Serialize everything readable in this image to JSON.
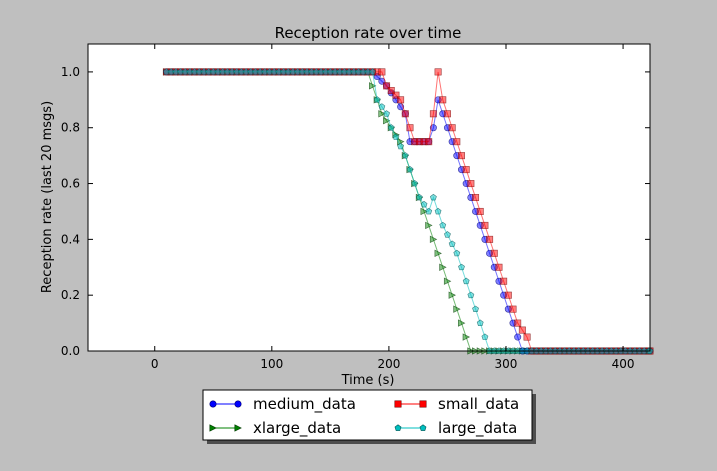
{
  "chart_data": {
    "type": "line",
    "title": "Reception rate over time",
    "xlabel": "Time (s)",
    "ylabel": "Reception rate (last 20 msgs)",
    "xlim": [
      -57,
      423
    ],
    "ylim": [
      0,
      1.1
    ],
    "xticks": [
      0,
      100,
      200,
      300,
      400
    ],
    "yticks": [
      0.0,
      0.2,
      0.4,
      0.6,
      0.8,
      1.0
    ],
    "xtick_labels": [
      "0",
      "100",
      "200",
      "300",
      "400"
    ],
    "ytick_labels": [
      "0.0",
      "0.2",
      "0.4",
      "0.6",
      "0.8",
      "1.0"
    ],
    "legend_position": "below plot, center",
    "x_step": 4,
    "series": [
      {
        "name": "medium_data",
        "color": "#0000ff",
        "marker": "circle",
        "points": [
          [
            10,
            1.0
          ],
          [
            186,
            1.0
          ],
          [
            198,
            0.95
          ],
          [
            206,
            0.9
          ],
          [
            214,
            0.85
          ],
          [
            218,
            0.75
          ],
          [
            234,
            0.75
          ],
          [
            238,
            0.8
          ],
          [
            242,
            0.9
          ],
          [
            246,
            0.85
          ],
          [
            254,
            0.75
          ],
          [
            258,
            0.7
          ],
          [
            270,
            0.55
          ],
          [
            282,
            0.4
          ],
          [
            306,
            0.1
          ],
          [
            314,
            0.0
          ],
          [
            423,
            0.0
          ]
        ]
      },
      {
        "name": "small_data",
        "color": "#ff0000",
        "marker": "square",
        "points": [
          [
            10,
            1.0
          ],
          [
            194,
            1.0
          ],
          [
            198,
            0.95
          ],
          [
            210,
            0.9
          ],
          [
            214,
            0.85
          ],
          [
            218,
            0.8
          ],
          [
            222,
            0.75
          ],
          [
            234,
            0.75
          ],
          [
            238,
            0.85
          ],
          [
            242,
            1.0
          ],
          [
            246,
            0.9
          ],
          [
            254,
            0.8
          ],
          [
            258,
            0.75
          ],
          [
            266,
            0.65
          ],
          [
            278,
            0.5
          ],
          [
            290,
            0.35
          ],
          [
            310,
            0.1
          ],
          [
            318,
            0.05
          ],
          [
            322,
            0.0
          ],
          [
            423,
            0.0
          ]
        ]
      },
      {
        "name": "xlarge_data",
        "color": "#008000",
        "marker": "triangle-right",
        "points": [
          [
            10,
            1.0
          ],
          [
            182,
            1.0
          ],
          [
            186,
            0.95
          ],
          [
            190,
            0.9
          ],
          [
            194,
            0.85
          ],
          [
            202,
            0.8
          ],
          [
            210,
            0.75
          ],
          [
            222,
            0.6
          ],
          [
            226,
            0.55
          ],
          [
            230,
            0.5
          ],
          [
            234,
            0.45
          ],
          [
            242,
            0.35
          ],
          [
            254,
            0.2
          ],
          [
            270,
            0.0
          ],
          [
            423,
            0.0
          ]
        ]
      },
      {
        "name": "large_data",
        "color": "#00bfbf",
        "marker": "pentagon",
        "points": [
          [
            10,
            1.0
          ],
          [
            186,
            1.0
          ],
          [
            190,
            0.9
          ],
          [
            198,
            0.85
          ],
          [
            202,
            0.8
          ],
          [
            214,
            0.7
          ],
          [
            222,
            0.6
          ],
          [
            226,
            0.55
          ],
          [
            234,
            0.5
          ],
          [
            238,
            0.55
          ],
          [
            242,
            0.5
          ],
          [
            246,
            0.45
          ],
          [
            258,
            0.35
          ],
          [
            274,
            0.15
          ],
          [
            282,
            0.05
          ],
          [
            286,
            0.0
          ],
          [
            423,
            0.0
          ]
        ]
      }
    ],
    "legend": {
      "entries": [
        {
          "series": 0,
          "label": "medium_data"
        },
        {
          "series": 1,
          "label": "small_data"
        },
        {
          "series": 2,
          "label": "xlarge_data"
        },
        {
          "series": 3,
          "label": "large_data"
        }
      ]
    }
  }
}
